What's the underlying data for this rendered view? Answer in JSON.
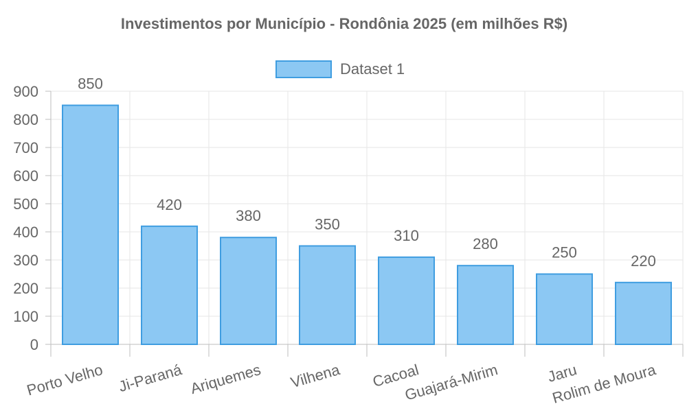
{
  "chart_data": {
    "type": "bar",
    "title": "Investimentos por Município - Rondônia 2025 (em milhões R$)",
    "legend": {
      "position": "top",
      "entries": [
        "Dataset 1"
      ]
    },
    "categories": [
      "Porto Velho",
      "Ji-Paraná",
      "Ariquemes",
      "Vilhena",
      "Cacoal",
      "Guajará-Mirim",
      "Jaru",
      "Rolim de Moura"
    ],
    "series": [
      {
        "name": "Dataset 1",
        "values": [
          850,
          420,
          380,
          350,
          310,
          280,
          250,
          220
        ],
        "fill": "#8cc8f3",
        "border": "#3f9de0"
      }
    ],
    "data_labels": [
      "850",
      "420",
      "380",
      "350",
      "310",
      "280",
      "250",
      "220"
    ],
    "y_ticks": [
      "0",
      "100",
      "200",
      "300",
      "400",
      "500",
      "600",
      "700",
      "800",
      "900"
    ],
    "ylim": [
      0,
      900
    ],
    "grid": true,
    "xlabel": "",
    "ylabel": ""
  }
}
